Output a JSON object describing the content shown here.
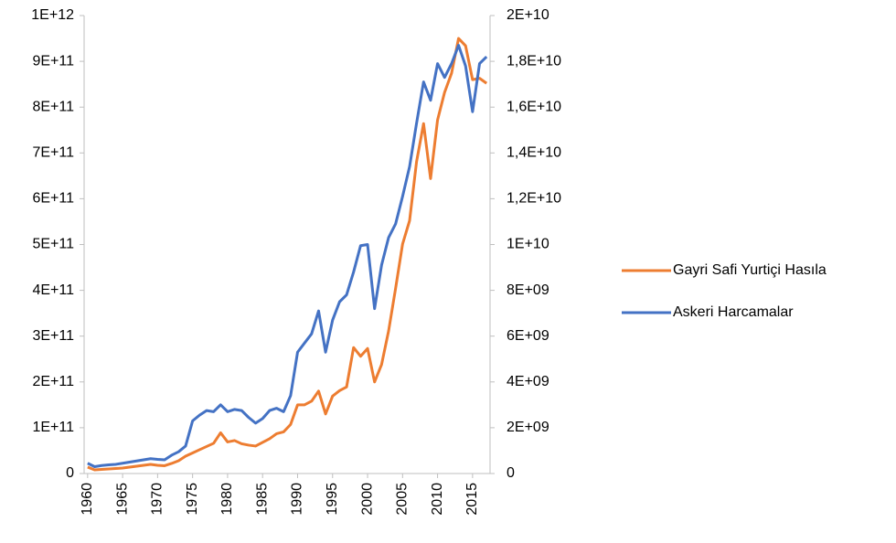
{
  "chart_data": {
    "type": "line",
    "x": [
      1960,
      1961,
      1962,
      1963,
      1964,
      1965,
      1966,
      1967,
      1968,
      1969,
      1970,
      1971,
      1972,
      1973,
      1974,
      1975,
      1976,
      1977,
      1978,
      1979,
      1980,
      1981,
      1982,
      1983,
      1984,
      1985,
      1986,
      1987,
      1988,
      1989,
      1990,
      1991,
      1992,
      1993,
      1994,
      1995,
      1996,
      1997,
      1998,
      1999,
      2000,
      2001,
      2002,
      2003,
      2004,
      2005,
      2006,
      2007,
      2008,
      2009,
      2010,
      2011,
      2012,
      2013,
      2014,
      2015,
      2016,
      2017
    ],
    "xlim": [
      1959.5,
      2017.5
    ],
    "xticks": [
      1960,
      1965,
      1970,
      1975,
      1980,
      1985,
      1990,
      1995,
      2000,
      2005,
      2010,
      2015
    ],
    "ylim": [
      0,
      1000000000000.0
    ],
    "yticks": [
      0,
      {
        "value": 100000000000.0,
        "label": "1E+11"
      },
      {
        "value": 200000000000.0,
        "label": "2E+11"
      },
      {
        "value": 300000000000.0,
        "label": "3E+11"
      },
      {
        "value": 400000000000.0,
        "label": "4E+11"
      },
      {
        "value": 500000000000.0,
        "label": "5E+11"
      },
      {
        "value": 600000000000.0,
        "label": "6E+11"
      },
      {
        "value": 700000000000.0,
        "label": "7E+11"
      },
      {
        "value": 800000000000.0,
        "label": "8E+11"
      },
      {
        "value": 900000000000.0,
        "label": "9E+11"
      },
      {
        "value": 1000000000000.0,
        "label": "1E+12"
      }
    ],
    "y2lim": [
      0,
      20000000000.0
    ],
    "y2ticks": [
      0,
      {
        "value": 2000000000.0,
        "label": "2E+09"
      },
      {
        "value": 4000000000.0,
        "label": "4E+09"
      },
      {
        "value": 6000000000.0,
        "label": "6E+09"
      },
      {
        "value": 8000000000.0,
        "label": "8E+09"
      },
      {
        "value": 10000000000.0,
        "label": "1E+10"
      },
      {
        "value": 12000000000.0,
        "label": "1,2E+10"
      },
      {
        "value": 14000000000.0,
        "label": "1,4E+10"
      },
      {
        "value": 16000000000.0,
        "label": "1,6E+10"
      },
      {
        "value": 18000000000.0,
        "label": "1,8E+10"
      },
      {
        "value": 20000000000.0,
        "label": "2E+10"
      }
    ],
    "legend": "right",
    "series": [
      {
        "name": "Gayri Safi Yurtiçi Hasıla",
        "color": "#ed7d31",
        "values": [
          14000000000.0,
          8000000000.0,
          9000000000.0,
          10000000000.0,
          11000000000.0,
          12000000000.0,
          14000000000.0,
          16000000000.0,
          18000000000.0,
          20000000000.0,
          18000000000.0,
          17000000000.0,
          22000000000.0,
          28000000000.0,
          38000000000.0,
          45000000000.0,
          52000000000.0,
          59000000000.0,
          66000000000.0,
          89000000000.0,
          69000000000.0,
          72000000000.0,
          65000000000.0,
          62000000000.0,
          60000000000.0,
          68000000000.0,
          76000000000.0,
          87000000000.0,
          91000000000.0,
          107000000000.0,
          150000000000.0,
          150000000000.0,
          158000000000.0,
          180000000000.0,
          130000000000.0,
          169000000000.0,
          181000000000.0,
          189000000000.0,
          275000000000.0,
          256000000000.0,
          273000000000.0,
          200000000000.0,
          238000000000.0,
          311000000000.0,
          404000000000.0,
          501000000000.0,
          552000000000.0,
          681000000000.0,
          764000000000.0,
          644000000000.0,
          772000000000.0,
          832000000000.0,
          874000000000.0,
          950000000000.0,
          934000000000.0,
          860000000000.0,
          863000000000.0,
          852000000000.0
        ]
      },
      {
        "name": "Askeri Harcamalar",
        "color": "#4472c4",
        "axis": "y2",
        "values": [
          450000000.0,
          300000000.0,
          350000000.0,
          380000000.0,
          400000000.0,
          450000000.0,
          500000000.0,
          550000000.0,
          600000000.0,
          650000000.0,
          620000000.0,
          600000000.0,
          800000000.0,
          950000000.0,
          1200000000.0,
          2300000000.0,
          2550000000.0,
          2750000000.0,
          2700000000.0,
          3000000000.0,
          2700000000.0,
          2800000000.0,
          2750000000.0,
          2450000000.0,
          2200000000.0,
          2400000000.0,
          2750000000.0,
          2850000000.0,
          2700000000.0,
          3400000000.0,
          5300000000.0,
          5700000000.0,
          6100000000.0,
          7100000000.0,
          5300000000.0,
          6700000000.0,
          7500000000.0,
          7800000000.0,
          8800000000.0,
          9950000000.0,
          10000000000.0,
          7200000000.0,
          9100000000.0,
          10300000000.0,
          10900000000.0,
          12100000000.0,
          13400000000.0,
          15300000000.0,
          17100000000.0,
          16300000000.0,
          17900000000.0,
          17300000000.0,
          17900000000.0,
          18700000000.0,
          17800000000.0,
          15800000000.0,
          17900000000.0,
          18200000000.0
        ]
      }
    ]
  }
}
